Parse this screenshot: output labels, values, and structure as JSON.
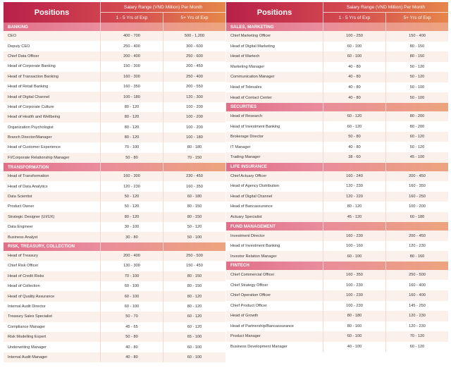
{
  "header": {
    "positions_label": "Positions",
    "salary_label": "Salary Range (VND Million) Per Month",
    "col1_label": "1 - 5 Yrs of Exp",
    "col2_label": "5+ Yrs of Exp"
  },
  "left": [
    {
      "name": "BANKING",
      "rows": [
        [
          "CEO",
          "400 - 700",
          "500 - 1,200"
        ],
        [
          "Deputy CEO",
          "250 - 400",
          "300 - 600"
        ],
        [
          "Chief Data Officer",
          "200 - 400",
          "250 - 600"
        ],
        [
          "Head of Corporate Banking",
          "150 - 300",
          "200 - 450"
        ],
        [
          "Head of Transaction Banking",
          "160 - 300",
          "250 - 400"
        ],
        [
          "Head of Retail Banking",
          "160 - 350",
          "200 - 550"
        ],
        [
          "Head of Digital Channel",
          "100 - 180",
          "120 - 300"
        ],
        [
          "Head of Corporate Culture",
          "80 - 120",
          "100 - 200"
        ],
        [
          "Head of Health and Wellbeing",
          "80 - 120",
          "100 - 200"
        ],
        [
          "Organization Psychologist",
          "80 - 120",
          "100 - 200"
        ],
        [
          "Branch Director/Manager",
          "80 - 120",
          "100 - 180"
        ],
        [
          "Head of Customer Experience",
          "70 - 100",
          "80 - 180"
        ],
        [
          "FI/Corporate Relationship Manager",
          "50 - 80",
          "70 - 150"
        ]
      ]
    },
    {
      "name": "TRANSFORMATION",
      "rows": [
        [
          "Head of Transformation",
          "160 - 300",
          "230 - 450"
        ],
        [
          "Head of Data Analytics",
          "120 - 230",
          "160 - 350"
        ],
        [
          "Data Scientist",
          "50 - 120",
          "60 - 180"
        ],
        [
          "Product Owner",
          "50 - 120",
          "80 - 150"
        ],
        [
          "Strategic Designer (UI/UX)",
          "80 - 120",
          "80 - 150"
        ],
        [
          "Data Engineer",
          "30 - 100",
          "50 - 120"
        ],
        [
          "Business Analyst",
          "30 - 80",
          "50 - 100"
        ]
      ]
    },
    {
      "name": "RISK, TREASURY, COLLECTION",
      "rows": [
        [
          "Head of Treasury",
          "200 - 400",
          "250 - 500"
        ],
        [
          "Chief Risk Officer",
          "130 - 300",
          "150 - 450"
        ],
        [
          "Head of Credit Risks",
          "70 - 100",
          "80 - 150"
        ],
        [
          "Head of Collection",
          "60 - 100",
          "80 - 150"
        ],
        [
          "Head of Quality Assurance",
          "60 - 100",
          "80 - 120"
        ],
        [
          "Internal Audit Director",
          "60 - 100",
          "80 - 120"
        ],
        [
          "Treasury Sales Specialist",
          "50 - 70",
          "60 - 120"
        ],
        [
          "Compliance Manager",
          "45 - 65",
          "60 - 120"
        ],
        [
          "Risk Modelling Expert",
          "50 - 80",
          "65 - 100"
        ],
        [
          "Underwriting Manager",
          "40 - 80",
          "60 - 100"
        ],
        [
          "Internal Audit Manager",
          "40 - 80",
          "60 - 100"
        ]
      ]
    }
  ],
  "right": [
    {
      "name": "SALES, MARKETING",
      "rows": [
        [
          "Chief Marketing Officer",
          "100 - 250",
          "150 - 400"
        ],
        [
          "Head of Digital Marketing",
          "60 - 100",
          "80 - 150"
        ],
        [
          "Head of Martech",
          "60 - 100",
          "80 - 150"
        ],
        [
          "Marketing Manager",
          "40 - 80",
          "50 - 120"
        ],
        [
          "Communication Manager",
          "40 - 80",
          "50 - 120"
        ],
        [
          "Head of Telesales",
          "40 - 80",
          "50 - 100"
        ],
        [
          "Head of Contact Center",
          "40 - 80",
          "50 - 100"
        ]
      ]
    },
    {
      "name": "SECURITIES",
      "rows": [
        [
          "Head of Research",
          "60 - 120",
          "80 - 200"
        ],
        [
          "Head of Investment Banking",
          "60 - 120",
          "80 - 200"
        ],
        [
          "Brokerage Director",
          "50 - 80",
          "60 - 120"
        ],
        [
          "IT Manager",
          "40 - 80",
          "50 - 120"
        ],
        [
          "Trading Manager",
          "38 - 60",
          "45 - 100"
        ]
      ]
    },
    {
      "name": "LIFE INSURANCE",
      "rows": [
        [
          "Chief Actuary Officer",
          "160 - 240",
          "200 - 450"
        ],
        [
          "Head of Agency Distribution",
          "120 - 230",
          "160 - 350"
        ],
        [
          "Head of Digital Channel",
          "120 - 220",
          "160 - 250"
        ],
        [
          "Head of Bancassurance",
          "80 - 120",
          "100 - 200"
        ],
        [
          "Actuary Specialist",
          "45 - 120",
          "60 - 180"
        ]
      ]
    },
    {
      "name": "FUND MANAGEMENT",
      "rows": [
        [
          "Investment Director",
          "160 - 230",
          "200 - 450"
        ],
        [
          "Head of Investment Banking",
          "100 - 160",
          "120 - 230"
        ],
        [
          "Investor Relation Manager",
          "60 - 100",
          "80 - 160"
        ]
      ]
    },
    {
      "name": "FINTECH",
      "rows": [
        [
          "Chief Commercial Officer",
          "160 - 350",
          "250 - 500"
        ],
        [
          "Chief Strategy Officer",
          "100 - 230",
          "160 - 400"
        ],
        [
          "Chief Operation Officer",
          "100 - 230",
          "160 - 400"
        ],
        [
          "Chief Product Officer",
          "100 - 230",
          "145 - 250"
        ],
        [
          "Head of Growth",
          "80 - 180",
          "120 - 230"
        ],
        [
          "Head of Partnership/Bancassurance",
          "80 - 160",
          "120 - 230"
        ],
        [
          "Product Manager",
          "60 - 100",
          "70 - 120"
        ],
        [
          "Business Development Manager",
          "40 - 100",
          "60 - 120"
        ]
      ]
    }
  ]
}
